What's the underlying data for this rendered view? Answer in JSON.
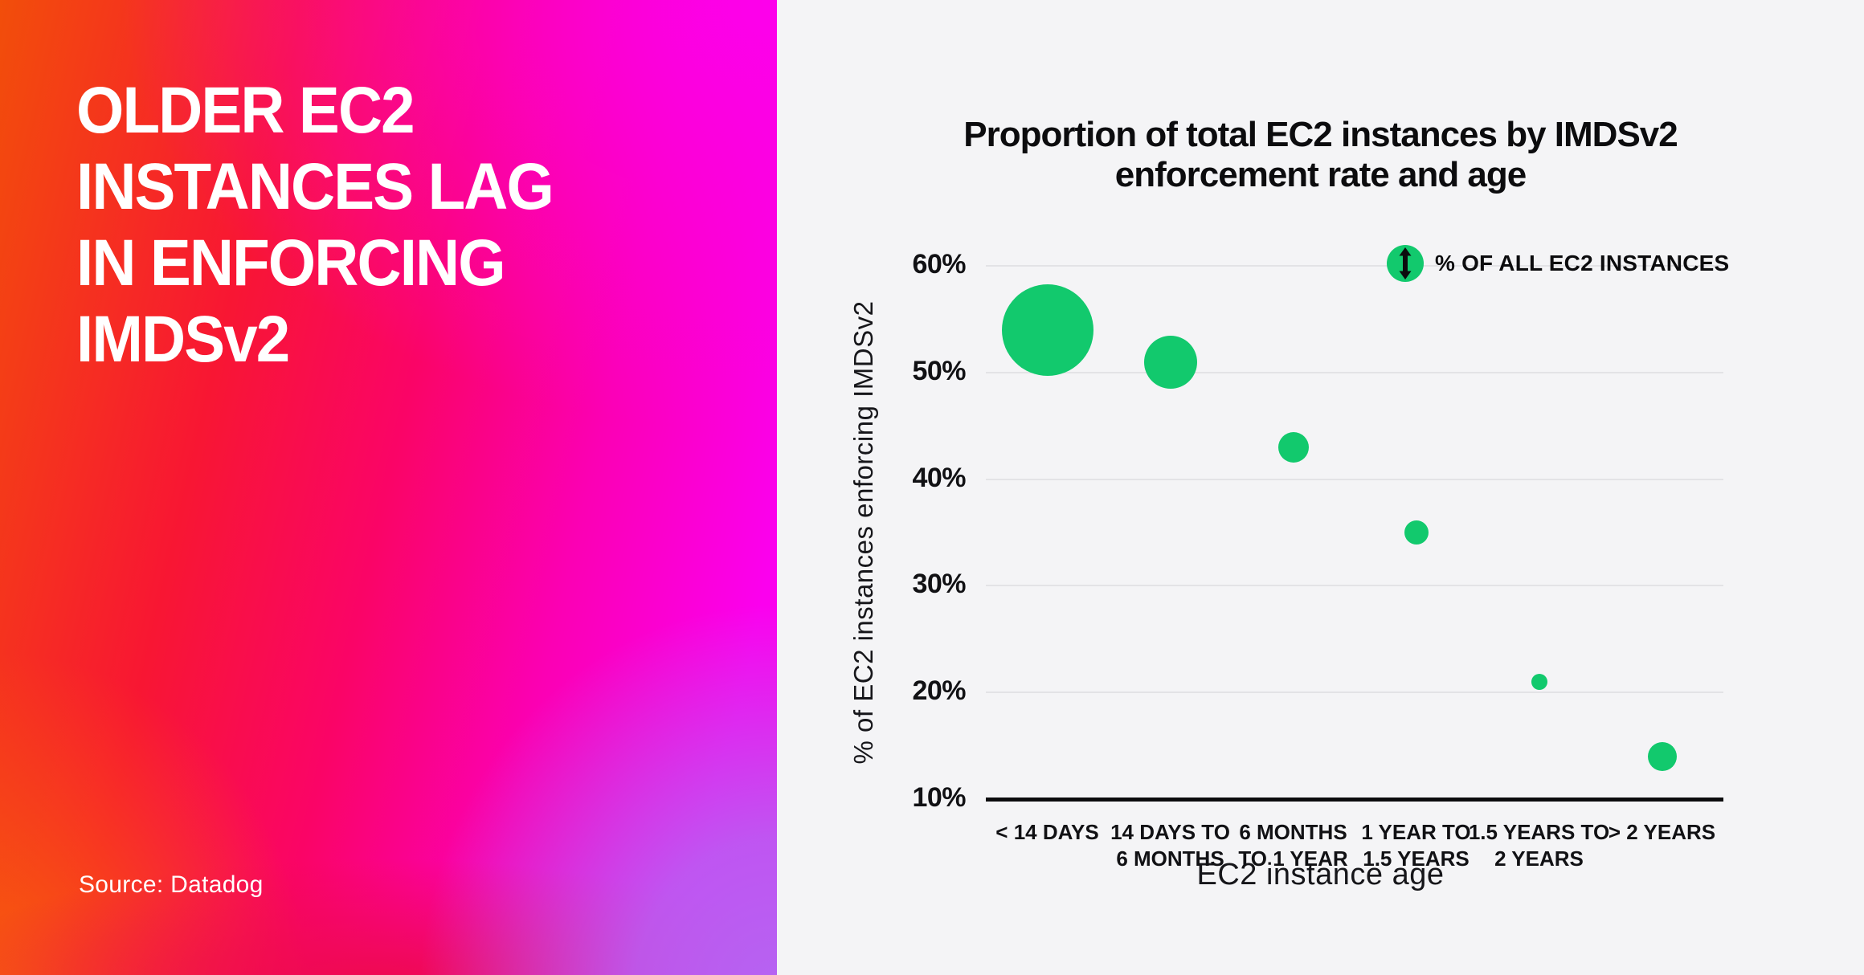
{
  "panel": {
    "headline": "OLDER EC2\nINSTANCES LAG\nIN ENFORCING\nIMDSv2",
    "source": "Source: Datadog",
    "gradient_colors": [
      "#f24e0a",
      "#f81633",
      "#fa0467",
      "#fb00b4",
      "#fb00ee",
      "#b564f2",
      "#ee0a4e"
    ]
  },
  "chart_data": {
    "type": "scatter",
    "subtype": "bubble",
    "title": "Proportion of total EC2 instances by IMDSv2\nenforcement rate and age",
    "xlabel": "EC2 instance age",
    "ylabel": "% of EC2 instances enforcing IMDSv2",
    "categories": [
      "< 14 DAYS",
      "14 DAYS TO\n6 MONTHS",
      "6 MONTHS\nTO 1 YEAR",
      "1 YEAR TO\n1.5 YEARS",
      "1.5 YEARS TO\n2 YEARS",
      "> 2 YEARS"
    ],
    "series": [
      {
        "name": "% OF ALL EC2 INSTANCES",
        "values": [
          54,
          51,
          43,
          35,
          21,
          14
        ],
        "bubble_radius_px": [
          57,
          33,
          19,
          15,
          10,
          18
        ]
      }
    ],
    "ylim": [
      10,
      60
    ],
    "yticks": [
      10,
      20,
      30,
      40,
      50,
      60
    ],
    "ytick_suffix": "%",
    "grid": "horizontal",
    "legend": {
      "label": "% OF ALL EC2 INSTANCES",
      "position": "top-right",
      "symbol": "bubble-with-vertical-arrow"
    },
    "colors": {
      "bubble": "#12c96d",
      "axis_text": "#111114",
      "gridline": "#e3e3e6",
      "panel_bg": "#f4f4f6"
    }
  }
}
